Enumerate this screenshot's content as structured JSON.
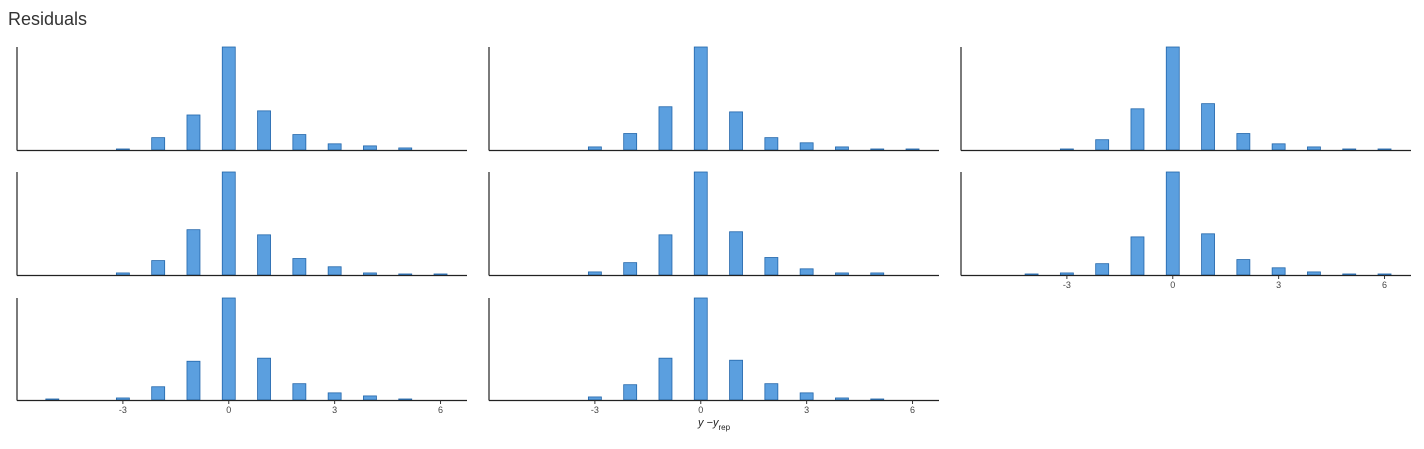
{
  "page": {
    "title": "Residuals"
  },
  "chart_data": {
    "type": "bar",
    "subtype": "histogram-facets",
    "xlabel": {
      "main": "y −y",
      "sub": "rep"
    },
    "x_bins": [
      -5,
      -4,
      -3,
      -2,
      -1,
      0,
      1,
      2,
      3,
      4,
      5,
      6
    ],
    "xticks": [
      -3,
      0,
      3,
      6
    ],
    "xlim": [
      -6,
      6.75
    ],
    "bar_color": "#5b9fdf",
    "bar_edge": "#2266aa",
    "panels": [
      {
        "values": [
          0,
          0,
          1,
          12,
          34,
          100,
          38,
          15,
          6,
          4,
          2,
          0
        ],
        "show_ticks": false
      },
      {
        "values": [
          0,
          0,
          3,
          16,
          42,
          100,
          37,
          12,
          7,
          3,
          1,
          1
        ],
        "show_ticks": false
      },
      {
        "values": [
          0,
          0,
          1,
          10,
          40,
          100,
          45,
          16,
          6,
          3,
          1,
          1
        ],
        "show_ticks": false
      },
      {
        "values": [
          0,
          0,
          2,
          14,
          44,
          100,
          39,
          16,
          8,
          2,
          1,
          1
        ],
        "show_ticks": false
      },
      {
        "values": [
          0,
          0,
          3,
          12,
          39,
          100,
          42,
          17,
          6,
          2,
          2,
          0
        ],
        "show_ticks": false
      },
      {
        "values": [
          0,
          1,
          2,
          11,
          37,
          100,
          40,
          15,
          7,
          3,
          1,
          1
        ],
        "show_ticks": true
      },
      {
        "values": [
          1,
          0,
          2,
          13,
          38,
          100,
          41,
          16,
          7,
          4,
          1,
          0
        ],
        "show_ticks": true
      },
      {
        "values": [
          0,
          0,
          3,
          15,
          41,
          100,
          39,
          16,
          7,
          2,
          1,
          0
        ],
        "show_ticks": true
      }
    ]
  }
}
